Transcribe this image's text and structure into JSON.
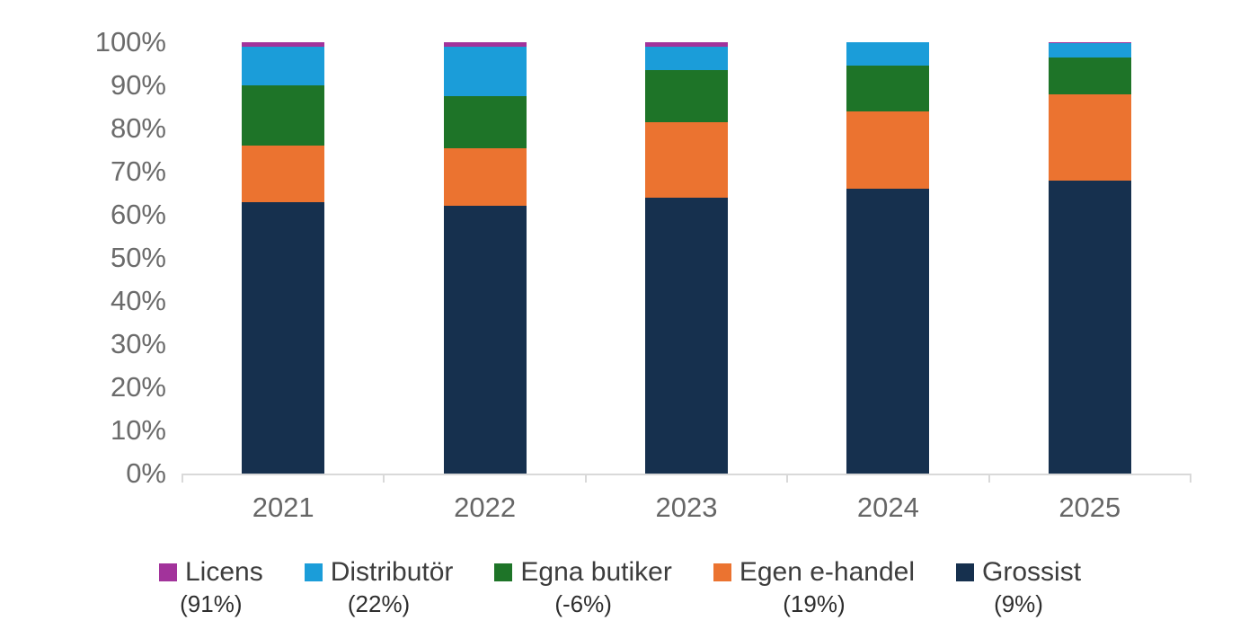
{
  "chart_data": {
    "type": "bar",
    "stacked": true,
    "percent_stacked": true,
    "title": "",
    "xlabel": "",
    "ylabel": "",
    "grid": false,
    "legend_position": "bottom",
    "ylim": [
      0,
      100
    ],
    "y_ticks": [
      "0%",
      "10%",
      "20%",
      "30%",
      "40%",
      "50%",
      "60%",
      "70%",
      "80%",
      "90%",
      "100%"
    ],
    "categories": [
      "2021",
      "2022",
      "2023",
      "2024",
      "2025"
    ],
    "series": [
      {
        "name": "Grossist",
        "legend_sub": "(9%)",
        "color": "#16304e",
        "values": [
          63,
          62,
          64,
          66,
          68
        ]
      },
      {
        "name": "Egen e-handel",
        "legend_sub": "(19%)",
        "color": "#eb7330",
        "values": [
          13,
          13.5,
          17.5,
          18,
          20
        ]
      },
      {
        "name": "Egna butiker",
        "legend_sub": "(-6%)",
        "color": "#1e7428",
        "values": [
          14,
          12,
          12,
          10.5,
          8.5
        ]
      },
      {
        "name": "Distributör",
        "legend_sub": "(22%)",
        "color": "#1b9dd9",
        "values": [
          9,
          11.5,
          5.5,
          5.5,
          3.2
        ]
      },
      {
        "name": "Licens",
        "legend_sub": "(91%)",
        "color": "#a2339b",
        "values": [
          1,
          1,
          1,
          0,
          0.3
        ]
      }
    ],
    "legend_order": [
      "Licens",
      "Distributör",
      "Egna butiker",
      "Egen e-handel",
      "Grossist"
    ],
    "axis_line_color": "#d9d9d9",
    "axis_text_color": "#6b6b6b",
    "legend_text_color": "#3d3d3d",
    "background_color": "#ffffff"
  }
}
